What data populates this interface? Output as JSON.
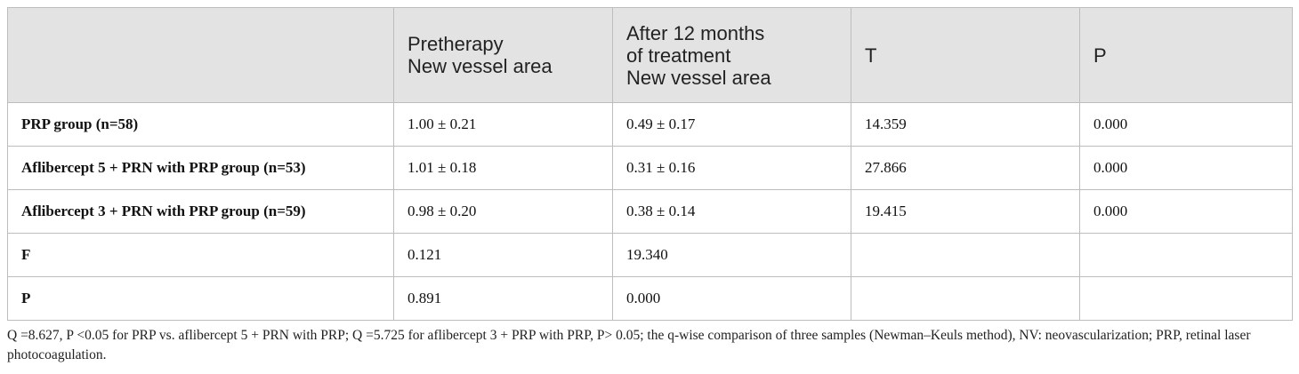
{
  "table": {
    "headers": [
      {
        "lines": [
          ""
        ]
      },
      {
        "lines": [
          "Pretherapy",
          "New vessel area"
        ]
      },
      {
        "lines": [
          "After 12 months",
          "of treatment",
          "New vessel area"
        ]
      },
      {
        "lines": [
          "T"
        ]
      },
      {
        "lines": [
          "P"
        ]
      }
    ],
    "rows": [
      {
        "label": "PRP group (n=58)",
        "cells": [
          "1.00 ± 0.21",
          "0.49 ± 0.17",
          "14.359",
          "0.000"
        ]
      },
      {
        "label": "Aflibercept 5 + PRN with PRP group (n=53)",
        "cells": [
          "1.01 ± 0.18",
          "0.31 ± 0.16",
          "27.866",
          "0.000"
        ]
      },
      {
        "label": "Aflibercept 3 + PRN with PRP group (n=59)",
        "cells": [
          "0.98 ± 0.20",
          "0.38 ± 0.14",
          "19.415",
          "0.000"
        ]
      },
      {
        "label": "F",
        "cells": [
          "0.121",
          "19.340",
          "",
          ""
        ]
      },
      {
        "label": "P",
        "cells": [
          "0.891",
          "0.000",
          "",
          ""
        ]
      }
    ]
  },
  "footnote": "Q =8.627, P <0.05 for PRP vs. aflibercept 5 + PRN with PRP; Q =5.725 for aflibercept 3 + PRP with PRP, P> 0.05; the q-wise comparison of three samples (Newman–Keuls method), NV: neovascularization; PRP, retinal laser photocoagulation."
}
